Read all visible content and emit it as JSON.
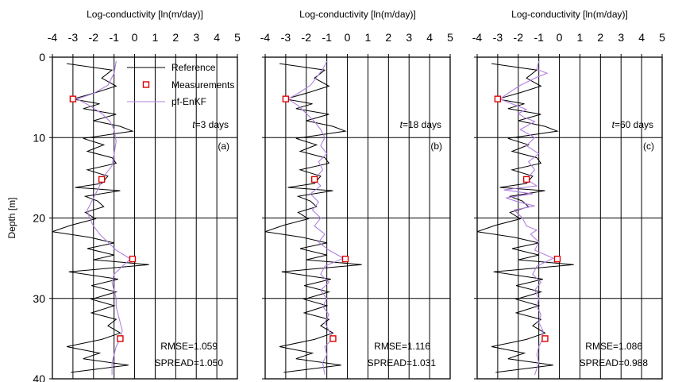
{
  "chart_data": {
    "type": "line",
    "shared_axes": {
      "x_label": "Log-conductivity [ln(m/day)]",
      "y_label": "Depth [m]",
      "x_ticks": [
        "-4",
        "-3",
        "-2",
        "-1",
        "0",
        "1",
        "2",
        "3",
        "4",
        "5"
      ],
      "y_ticks": [
        "0",
        "10",
        "20",
        "30",
        "40"
      ],
      "xlim": [
        -4,
        5
      ],
      "ylim": [
        0,
        40
      ],
      "y_inverted": true,
      "x_axis_position": "top",
      "grid": "vertical and horizontal"
    },
    "legend": {
      "placement": "top-right of panel (a)",
      "entries": [
        {
          "key": "reference",
          "label": "Reference",
          "color": "#000000"
        },
        {
          "key": "measurements",
          "label": "Measurements",
          "color": "#dd0000"
        },
        {
          "key": "estimate",
          "label": "pf-EnKF",
          "color": "#b080e0"
        }
      ]
    },
    "reference": [
      {
        "depth": 0.8,
        "k": -3.3
      },
      {
        "depth": 1.6,
        "k": -1.1
      },
      {
        "depth": 2.6,
        "k": -1.6
      },
      {
        "depth": 3.6,
        "k": -0.9
      },
      {
        "depth": 4.4,
        "k": -1.9
      },
      {
        "depth": 5.2,
        "k": -3.0
      },
      {
        "depth": 5.8,
        "k": -1.7
      },
      {
        "depth": 6.4,
        "k": -2.5
      },
      {
        "depth": 7.1,
        "k": -0.9
      },
      {
        "depth": 7.9,
        "k": -2.0
      },
      {
        "depth": 8.6,
        "k": -0.7
      },
      {
        "depth": 9.2,
        "k": -0.1
      },
      {
        "depth": 10.1,
        "k": -2.5
      },
      {
        "depth": 10.9,
        "k": -1.5
      },
      {
        "depth": 11.7,
        "k": -2.3
      },
      {
        "depth": 12.5,
        "k": -1.1
      },
      {
        "depth": 13.2,
        "k": -0.9
      },
      {
        "depth": 14.0,
        "k": -2.3
      },
      {
        "depth": 14.8,
        "k": -1.3
      },
      {
        "depth": 15.7,
        "k": -1.6
      },
      {
        "depth": 16.2,
        "k": -2.9
      },
      {
        "depth": 16.6,
        "k": -0.7
      },
      {
        "depth": 17.3,
        "k": -2.4
      },
      {
        "depth": 17.9,
        "k": -1.8
      },
      {
        "depth": 18.6,
        "k": -1.5
      },
      {
        "depth": 19.3,
        "k": -2.4
      },
      {
        "depth": 20.1,
        "k": -1.9
      },
      {
        "depth": 20.9,
        "k": -3.1
      },
      {
        "depth": 21.7,
        "k": -4.0
      },
      {
        "depth": 22.4,
        "k": -2.2
      },
      {
        "depth": 23.1,
        "k": -1.0
      },
      {
        "depth": 23.8,
        "k": -2.3
      },
      {
        "depth": 24.6,
        "k": -1.0
      },
      {
        "depth": 25.2,
        "k": -2.0
      },
      {
        "depth": 25.8,
        "k": 0.7
      },
      {
        "depth": 26.7,
        "k": -3.2
      },
      {
        "depth": 27.6,
        "k": -0.8
      },
      {
        "depth": 28.4,
        "k": -2.1
      },
      {
        "depth": 29.2,
        "k": -0.9
      },
      {
        "depth": 30.1,
        "k": -2.1
      },
      {
        "depth": 30.9,
        "k": -1.0
      },
      {
        "depth": 31.8,
        "k": -2.1
      },
      {
        "depth": 32.6,
        "k": -0.9
      },
      {
        "depth": 33.4,
        "k": -1.3
      },
      {
        "depth": 34.3,
        "k": -0.7
      },
      {
        "depth": 35.1,
        "k": -1.6
      },
      {
        "depth": 36.0,
        "k": -3.3
      },
      {
        "depth": 36.8,
        "k": -1.7
      },
      {
        "depth": 37.5,
        "k": -2.5
      },
      {
        "depth": 38.3,
        "k": -0.3
      },
      {
        "depth": 39.2,
        "k": -3.1
      }
    ],
    "measurements": [
      {
        "depth": 5.2,
        "k": -3.0
      },
      {
        "depth": 15.2,
        "k": -1.6
      },
      {
        "depth": 25.1,
        "k": -0.1
      },
      {
        "depth": 35.0,
        "k": -0.7
      }
    ],
    "panels": [
      {
        "id": "a",
        "label": "(a)",
        "time_prefix": "t",
        "time_suffix": "=3 days",
        "rmse": "RMSE=1.059",
        "spread": "SPREAD=1.050",
        "measurements_marked": [
          0,
          1,
          2,
          3
        ],
        "estimate": [
          {
            "depth": 0.5,
            "k": -0.9
          },
          {
            "depth": 2.0,
            "k": -1.0
          },
          {
            "depth": 3.5,
            "k": -1.3
          },
          {
            "depth": 4.5,
            "k": -2.0
          },
          {
            "depth": 5.2,
            "k": -2.8
          },
          {
            "depth": 6.0,
            "k": -2.2
          },
          {
            "depth": 7.0,
            "k": -1.6
          },
          {
            "depth": 8.0,
            "k": -1.2
          },
          {
            "depth": 9.0,
            "k": -1.0
          },
          {
            "depth": 10.5,
            "k": -0.9
          },
          {
            "depth": 12.0,
            "k": -1.0
          },
          {
            "depth": 13.5,
            "k": -1.1
          },
          {
            "depth": 14.5,
            "k": -1.4
          },
          {
            "depth": 15.2,
            "k": -1.6
          },
          {
            "depth": 16.0,
            "k": -1.7
          },
          {
            "depth": 17.0,
            "k": -1.9
          },
          {
            "depth": 18.0,
            "k": -2.1
          },
          {
            "depth": 19.0,
            "k": -2.3
          },
          {
            "depth": 20.0,
            "k": -2.2
          },
          {
            "depth": 21.0,
            "k": -2.0
          },
          {
            "depth": 22.0,
            "k": -1.7
          },
          {
            "depth": 23.0,
            "k": -1.3
          },
          {
            "depth": 24.0,
            "k": -0.9
          },
          {
            "depth": 25.1,
            "k": -0.2
          },
          {
            "depth": 26.0,
            "k": -0.6
          },
          {
            "depth": 27.0,
            "k": -1.0
          },
          {
            "depth": 28.0,
            "k": -1.1
          },
          {
            "depth": 29.0,
            "k": -1.0
          },
          {
            "depth": 30.0,
            "k": -0.9
          },
          {
            "depth": 31.0,
            "k": -0.9
          },
          {
            "depth": 32.0,
            "k": -0.8
          },
          {
            "depth": 33.0,
            "k": -0.7
          },
          {
            "depth": 34.0,
            "k": -0.6
          },
          {
            "depth": 35.0,
            "k": -0.7
          },
          {
            "depth": 36.0,
            "k": -0.9
          },
          {
            "depth": 37.0,
            "k": -1.0
          },
          {
            "depth": 38.0,
            "k": -1.1
          },
          {
            "depth": 39.5,
            "k": -1.1
          }
        ]
      },
      {
        "id": "b",
        "label": "(b)",
        "time_prefix": "t",
        "time_suffix": "=18 days",
        "rmse": "RMSE=1.116",
        "spread": "SPREAD=1.031",
        "measurements_marked": [
          0,
          1,
          2,
          3
        ],
        "estimate": [
          {
            "depth": 0.5,
            "k": -1.0
          },
          {
            "depth": 1.5,
            "k": -1.2
          },
          {
            "depth": 2.5,
            "k": -1.5
          },
          {
            "depth": 3.5,
            "k": -1.8
          },
          {
            "depth": 4.5,
            "k": -2.4
          },
          {
            "depth": 5.2,
            "k": -2.9
          },
          {
            "depth": 6.0,
            "k": -2.4
          },
          {
            "depth": 7.0,
            "k": -2.0
          },
          {
            "depth": 8.0,
            "k": -1.6
          },
          {
            "depth": 9.0,
            "k": -1.3
          },
          {
            "depth": 10.0,
            "k": -1.1
          },
          {
            "depth": 11.0,
            "k": -1.3
          },
          {
            "depth": 12.0,
            "k": -1.0
          },
          {
            "depth": 13.0,
            "k": -1.4
          },
          {
            "depth": 14.0,
            "k": -1.2
          },
          {
            "depth": 15.2,
            "k": -1.6
          },
          {
            "depth": 16.0,
            "k": -1.3
          },
          {
            "depth": 17.0,
            "k": -1.8
          },
          {
            "depth": 18.0,
            "k": -1.4
          },
          {
            "depth": 19.0,
            "k": -1.7
          },
          {
            "depth": 20.0,
            "k": -1.3
          },
          {
            "depth": 21.0,
            "k": -1.6
          },
          {
            "depth": 22.0,
            "k": -1.1
          },
          {
            "depth": 23.0,
            "k": -1.4
          },
          {
            "depth": 24.0,
            "k": -0.9
          },
          {
            "depth": 25.0,
            "k": -0.2
          },
          {
            "depth": 26.0,
            "k": -1.1
          },
          {
            "depth": 27.0,
            "k": -1.3
          },
          {
            "depth": 28.0,
            "k": -0.9
          },
          {
            "depth": 29.0,
            "k": -1.3
          },
          {
            "depth": 30.0,
            "k": -1.0
          },
          {
            "depth": 31.0,
            "k": -1.2
          },
          {
            "depth": 32.0,
            "k": -0.9
          },
          {
            "depth": 33.0,
            "k": -1.1
          },
          {
            "depth": 34.0,
            "k": -0.9
          },
          {
            "depth": 35.0,
            "k": -0.7
          },
          {
            "depth": 36.0,
            "k": -1.1
          },
          {
            "depth": 37.0,
            "k": -1.0
          },
          {
            "depth": 38.0,
            "k": -1.2
          },
          {
            "depth": 39.5,
            "k": -1.1
          }
        ]
      },
      {
        "id": "c",
        "label": "(c)",
        "time_prefix": "t",
        "time_suffix": "=60 days",
        "rmse": "RMSE=1.086",
        "spread": "SPREAD=0.988",
        "measurements_marked": [
          0,
          1,
          2,
          3
        ],
        "estimate": [
          {
            "depth": 0.5,
            "k": -1.0
          },
          {
            "depth": 1.5,
            "k": -1.1
          },
          {
            "depth": 2.0,
            "k": -0.6
          },
          {
            "depth": 2.5,
            "k": -1.1
          },
          {
            "depth": 3.5,
            "k": -1.9
          },
          {
            "depth": 4.5,
            "k": -2.5
          },
          {
            "depth": 5.2,
            "k": -2.9
          },
          {
            "depth": 6.0,
            "k": -2.1
          },
          {
            "depth": 6.5,
            "k": -1.6
          },
          {
            "depth": 7.0,
            "k": -2.0
          },
          {
            "depth": 7.5,
            "k": -1.7
          },
          {
            "depth": 8.0,
            "k": -1.2
          },
          {
            "depth": 9.0,
            "k": -1.9
          },
          {
            "depth": 10.0,
            "k": -1.2
          },
          {
            "depth": 11.0,
            "k": -1.6
          },
          {
            "depth": 12.0,
            "k": -1.0
          },
          {
            "depth": 13.0,
            "k": -1.5
          },
          {
            "depth": 14.0,
            "k": -1.2
          },
          {
            "depth": 15.2,
            "k": -1.6
          },
          {
            "depth": 16.0,
            "k": -1.1
          },
          {
            "depth": 16.5,
            "k": -2.7
          },
          {
            "depth": 17.0,
            "k": -1.3
          },
          {
            "depth": 17.5,
            "k": -2.6
          },
          {
            "depth": 18.0,
            "k": -2.0
          },
          {
            "depth": 18.5,
            "k": -1.2
          },
          {
            "depth": 19.0,
            "k": -2.2
          },
          {
            "depth": 20.0,
            "k": -1.8
          },
          {
            "depth": 21.0,
            "k": -1.6
          },
          {
            "depth": 21.5,
            "k": -1.1
          },
          {
            "depth": 22.0,
            "k": -1.4
          },
          {
            "depth": 23.0,
            "k": -1.0
          },
          {
            "depth": 24.0,
            "k": -1.2
          },
          {
            "depth": 25.0,
            "k": -0.3
          },
          {
            "depth": 26.0,
            "k": -1.1
          },
          {
            "depth": 27.0,
            "k": -1.3
          },
          {
            "depth": 28.0,
            "k": -0.9
          },
          {
            "depth": 29.0,
            "k": -1.2
          },
          {
            "depth": 30.0,
            "k": -1.0
          },
          {
            "depth": 31.0,
            "k": -1.1
          },
          {
            "depth": 32.0,
            "k": -0.9
          },
          {
            "depth": 33.0,
            "k": -1.0
          },
          {
            "depth": 34.0,
            "k": -0.8
          },
          {
            "depth": 35.0,
            "k": -0.8
          },
          {
            "depth": 36.0,
            "k": -1.0
          },
          {
            "depth": 37.0,
            "k": -1.1
          },
          {
            "depth": 38.0,
            "k": -1.0
          },
          {
            "depth": 39.5,
            "k": -1.2
          }
        ]
      }
    ]
  }
}
